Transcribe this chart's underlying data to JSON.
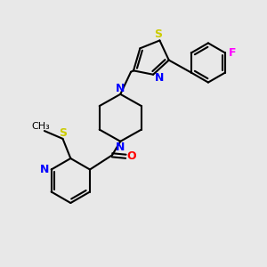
{
  "bg_color": "#e8e8e8",
  "bond_color": "#000000",
  "n_color": "#0000ff",
  "s_color": "#cccc00",
  "o_color": "#ff0000",
  "f_color": "#ff00ff",
  "text_color": "#000000",
  "line_width": 1.5,
  "figsize": [
    3.0,
    3.0
  ],
  "dpi": 100,
  "xlim": [
    0,
    10
  ],
  "ylim": [
    0,
    10
  ]
}
